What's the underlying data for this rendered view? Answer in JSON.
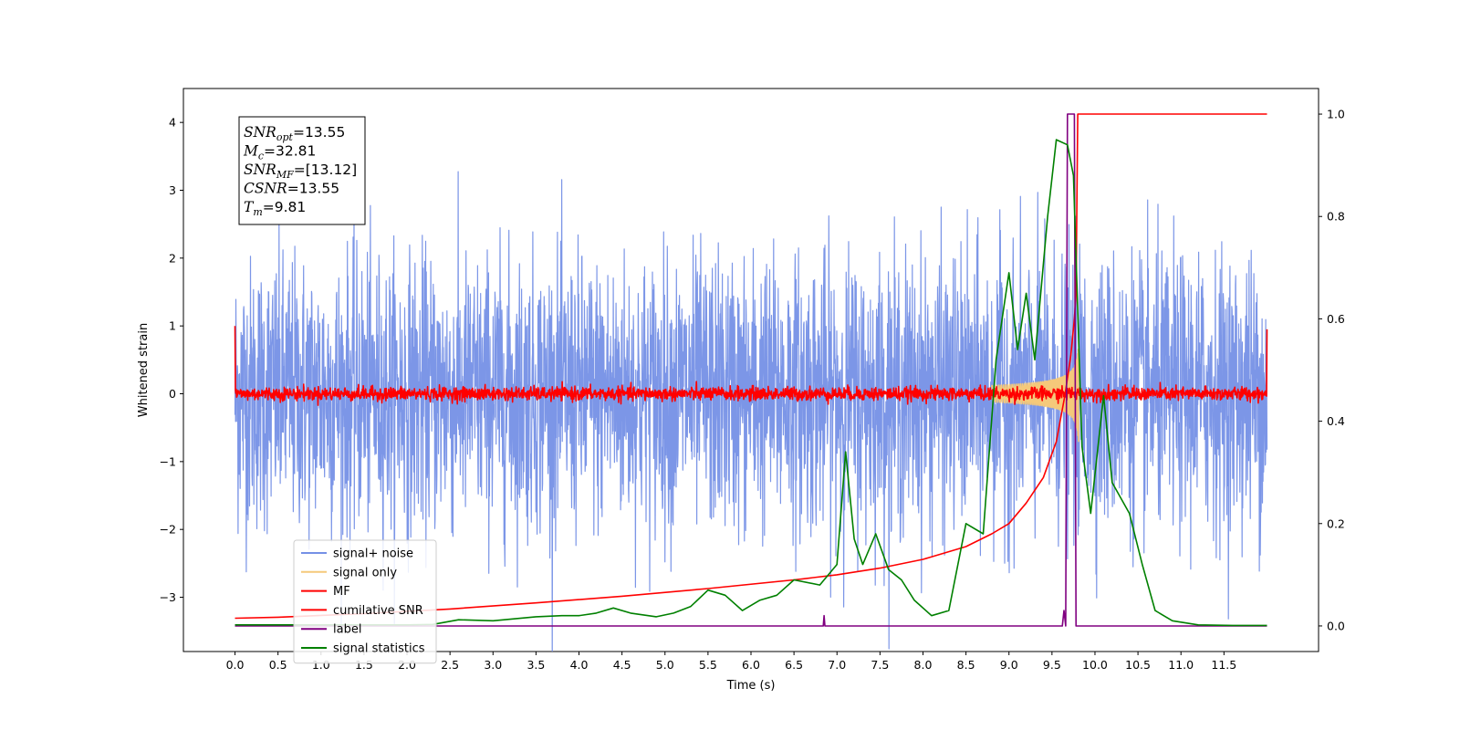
{
  "chart_data": {
    "type": "line",
    "xlabel": "Time (s)",
    "ylabel": "Whitened strain",
    "xlim": [
      -0.6,
      12.6
    ],
    "ylim": [
      -3.8,
      4.5
    ],
    "y2lim": [
      -0.05,
      1.05
    ],
    "xticks": [
      "0.0",
      "0.5",
      "1.0",
      "1.5",
      "2.0",
      "2.5",
      "3.0",
      "3.5",
      "4.0",
      "4.5",
      "5.0",
      "5.5",
      "6.0",
      "6.5",
      "7.0",
      "7.5",
      "8.0",
      "8.5",
      "9.0",
      "9.5",
      "10.0",
      "10.5",
      "11.0",
      "11.5"
    ],
    "yticks": [
      "4",
      "3",
      "2",
      "1",
      "0",
      "−1",
      "−2",
      "−3"
    ],
    "y2ticks": [
      "1.0",
      "0.8",
      "0.6",
      "0.4",
      "0.2",
      "0.0"
    ],
    "legend_position": "lower-left",
    "annotation": {
      "lines": [
        {
          "var": "SNR",
          "sub": "opt",
          "value": "=13.55"
        },
        {
          "var": "M",
          "sub": "c",
          "value": "=32.81"
        },
        {
          "var": "SNR",
          "sub": "MF",
          "value": "=[13.12]"
        },
        {
          "var": "CSNR",
          "sub": "",
          "value": "=13.55"
        },
        {
          "var": "T",
          "sub": "m",
          "value": "=9.81"
        }
      ]
    },
    "series": [
      {
        "name": "signal+ noise",
        "color": "#7590e6",
        "axis": "left",
        "style": "noise",
        "x_range": [
          0,
          12
        ],
        "amplitude_sd": 1.0
      },
      {
        "name": "signal only",
        "color": "#f5c97a",
        "axis": "left",
        "style": "chirp",
        "x_range": [
          8.8,
          9.81
        ],
        "peak_amplitude": 0.6
      },
      {
        "name": "MF",
        "color": "#ff0000",
        "axis": "left",
        "style": "mf",
        "x_range": [
          0,
          12
        ],
        "amplitude_sd": 0.05
      },
      {
        "name": "cumilative SNR",
        "color": "#ff0000",
        "axis": "right",
        "style": "line",
        "points": [
          [
            0,
            0.015
          ],
          [
            0.5,
            0.017
          ],
          [
            1.5,
            0.024
          ],
          [
            2.5,
            0.033
          ],
          [
            3.5,
            0.045
          ],
          [
            4.5,
            0.058
          ],
          [
            5.5,
            0.073
          ],
          [
            6.5,
            0.09
          ],
          [
            7.0,
            0.1
          ],
          [
            7.5,
            0.113
          ],
          [
            8.0,
            0.13
          ],
          [
            8.5,
            0.155
          ],
          [
            8.8,
            0.18
          ],
          [
            9.0,
            0.2
          ],
          [
            9.2,
            0.24
          ],
          [
            9.4,
            0.29
          ],
          [
            9.55,
            0.36
          ],
          [
            9.65,
            0.45
          ],
          [
            9.72,
            0.53
          ],
          [
            9.76,
            0.6
          ],
          [
            9.78,
            0.65
          ],
          [
            9.8,
            1.0
          ],
          [
            11.0,
            1.0
          ],
          [
            12.0,
            1.0
          ]
        ]
      },
      {
        "name": "label",
        "color": "#800080",
        "axis": "right",
        "style": "line",
        "points": [
          [
            0,
            0
          ],
          [
            6.84,
            0
          ],
          [
            6.85,
            0.02
          ],
          [
            6.86,
            0
          ],
          [
            9.62,
            0
          ],
          [
            9.64,
            0.03
          ],
          [
            9.66,
            0
          ],
          [
            9.68,
            1.0
          ],
          [
            9.76,
            1.0
          ],
          [
            9.78,
            0
          ],
          [
            11.6,
            0
          ],
          [
            12.0,
            0
          ]
        ]
      },
      {
        "name": "signal statistics",
        "color": "#008000",
        "axis": "right",
        "style": "line",
        "points": [
          [
            0,
            0.002
          ],
          [
            0.5,
            0.002
          ],
          [
            1.0,
            0.002
          ],
          [
            1.5,
            0.002
          ],
          [
            2.0,
            0.002
          ],
          [
            2.3,
            0.003
          ],
          [
            2.6,
            0.012
          ],
          [
            3.0,
            0.01
          ],
          [
            3.5,
            0.018
          ],
          [
            3.8,
            0.02
          ],
          [
            4.0,
            0.02
          ],
          [
            4.2,
            0.025
          ],
          [
            4.4,
            0.035
          ],
          [
            4.6,
            0.025
          ],
          [
            4.9,
            0.018
          ],
          [
            5.1,
            0.025
          ],
          [
            5.3,
            0.038
          ],
          [
            5.5,
            0.07
          ],
          [
            5.7,
            0.06
          ],
          [
            5.9,
            0.03
          ],
          [
            6.1,
            0.05
          ],
          [
            6.3,
            0.06
          ],
          [
            6.5,
            0.09
          ],
          [
            6.8,
            0.08
          ],
          [
            7.0,
            0.12
          ],
          [
            7.1,
            0.34
          ],
          [
            7.2,
            0.17
          ],
          [
            7.3,
            0.12
          ],
          [
            7.45,
            0.18
          ],
          [
            7.6,
            0.11
          ],
          [
            7.75,
            0.09
          ],
          [
            7.9,
            0.05
          ],
          [
            8.1,
            0.02
          ],
          [
            8.3,
            0.03
          ],
          [
            8.5,
            0.2
          ],
          [
            8.7,
            0.18
          ],
          [
            8.85,
            0.52
          ],
          [
            9.0,
            0.69
          ],
          [
            9.1,
            0.54
          ],
          [
            9.2,
            0.65
          ],
          [
            9.3,
            0.52
          ],
          [
            9.45,
            0.8
          ],
          [
            9.55,
            0.95
          ],
          [
            9.68,
            0.94
          ],
          [
            9.75,
            0.88
          ],
          [
            9.85,
            0.35
          ],
          [
            9.95,
            0.22
          ],
          [
            10.1,
            0.45
          ],
          [
            10.2,
            0.28
          ],
          [
            10.4,
            0.22
          ],
          [
            10.55,
            0.12
          ],
          [
            10.7,
            0.03
          ],
          [
            10.9,
            0.01
          ],
          [
            11.2,
            0.002
          ],
          [
            11.6,
            0.001
          ],
          [
            12.0,
            0.001
          ]
        ]
      }
    ]
  }
}
